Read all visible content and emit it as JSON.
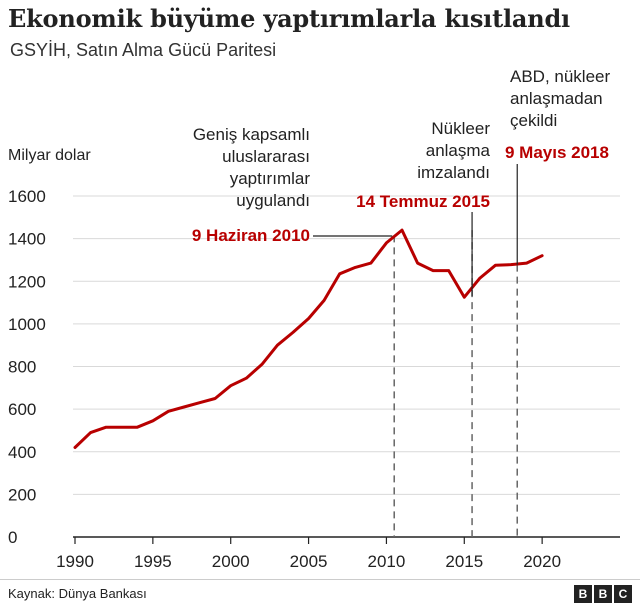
{
  "header": {
    "title": "Ekonomik büyüme yaptırımlarla kısıtlandı",
    "subtitle": "GSYİH, Satın Alma Gücü Paritesi"
  },
  "footer": {
    "source": "Kaynak: Dünya Bankası",
    "brand": [
      "B",
      "B",
      "C"
    ]
  },
  "colors": {
    "line": "#b80000",
    "date_label": "#b80000",
    "grid": "#d9d9d9",
    "axis": "#222222",
    "marker": "#666666"
  },
  "chart_data": {
    "type": "line",
    "ylabel": "Milyar dolar",
    "xlim": [
      1990,
      2025
    ],
    "ylim": [
      0,
      1600
    ],
    "yticks": [
      0,
      200,
      400,
      600,
      800,
      1000,
      1200,
      1400,
      1600
    ],
    "xticks": [
      1990,
      1995,
      2000,
      2005,
      2010,
      2015,
      2020
    ],
    "grid": true,
    "x": [
      1990,
      1991,
      1992,
      1993,
      1994,
      1995,
      1996,
      1997,
      1998,
      1999,
      2000,
      2001,
      2002,
      2003,
      2004,
      2005,
      2006,
      2007,
      2008,
      2009,
      2010,
      2011,
      2012,
      2013,
      2014,
      2015,
      2016,
      2017,
      2018,
      2019,
      2020
    ],
    "series": [
      {
        "values": [
          420,
          490,
          515,
          515,
          515,
          545,
          590,
          610,
          630,
          650,
          710,
          745,
          810,
          900,
          960,
          1025,
          1110,
          1235,
          1265,
          1285,
          1380,
          1440,
          1285,
          1250,
          1250,
          1125,
          1215,
          1275,
          1278,
          1285,
          1320
        ]
      }
    ],
    "annotations": [
      {
        "x": 2010.5,
        "y": 1415,
        "text": "Geniş kapsamlı uluslararası yaptırımlar uygulandı",
        "date": "9 Haziran 2010"
      },
      {
        "x": 2015.5,
        "y": 1440,
        "text": "Nükleer anlaşma imzalandı",
        "date": "14 Temmuz 2015"
      },
      {
        "x": 2018.4,
        "y": 1278,
        "text": "ABD, nükleer anlaşmadan çekildi",
        "date": "9 Mayıs 2018"
      }
    ]
  }
}
